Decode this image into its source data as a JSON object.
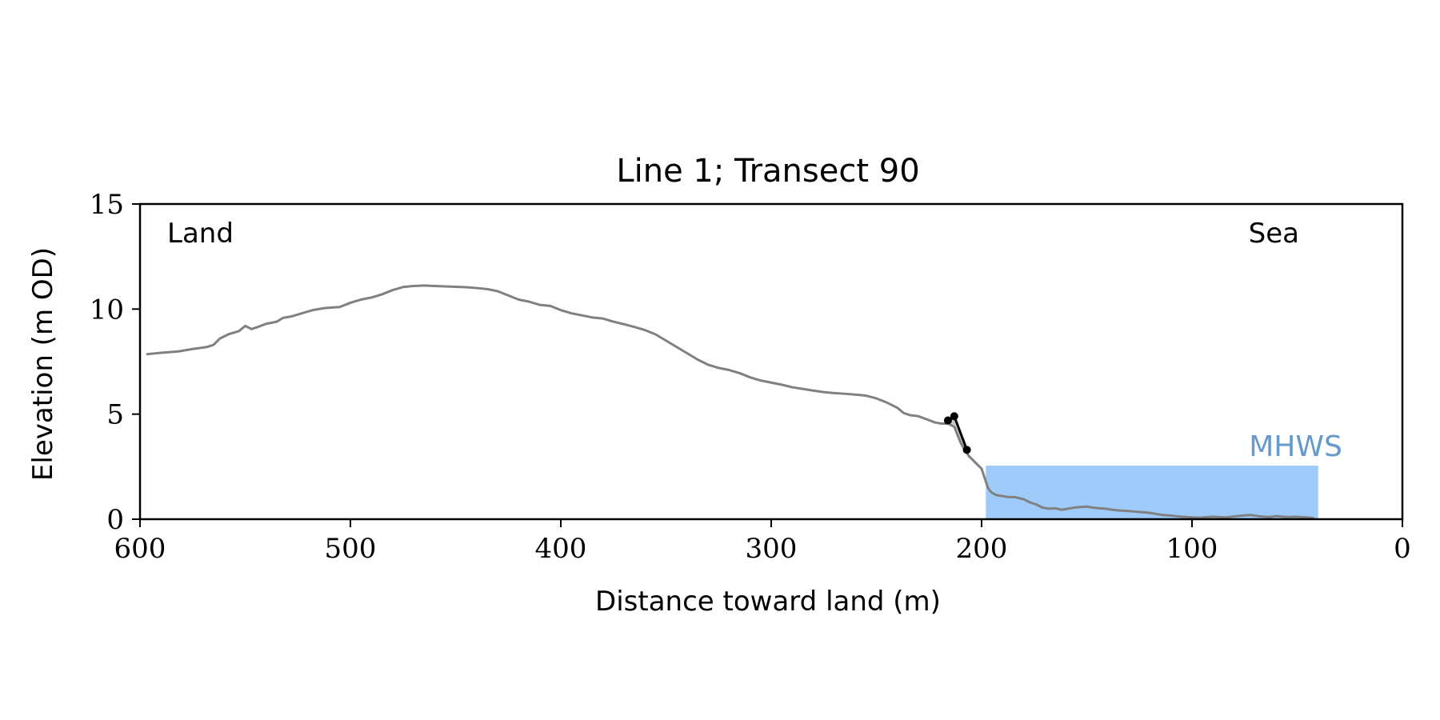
{
  "chart_data": {
    "type": "line",
    "title": "Line 1; Transect 90",
    "xlabel": "Distance toward land (m)",
    "ylabel": "Elevation (m OD)",
    "xlim": [
      600,
      0
    ],
    "ylim": [
      0,
      15
    ],
    "xticks": [
      600,
      500,
      400,
      300,
      200,
      100,
      0
    ],
    "yticks": [
      0,
      5,
      10,
      15
    ],
    "grid": false,
    "annotations": {
      "land": "Land",
      "sea": "Sea",
      "mhws": "MHWS"
    },
    "mhws": {
      "x_start": 198,
      "x_end": 40,
      "elevation": 2.55,
      "color": "#9fcbfb",
      "label_color": "#6699cc"
    },
    "colors": {
      "profile": "#808080",
      "cliff": "#000000",
      "fill": "#cccccc",
      "axis": "#000000"
    },
    "series": [
      {
        "key": "profile",
        "x": [
          597,
          590,
          582,
          575,
          568,
          565,
          562,
          558,
          553,
          550,
          547,
          544,
          540,
          535,
          532,
          528,
          523,
          518,
          512,
          505,
          500,
          495,
          490,
          485,
          480,
          475,
          470,
          465,
          460,
          455,
          450,
          445,
          440,
          435,
          430,
          425,
          420,
          415,
          410,
          405,
          400,
          395,
          390,
          385,
          380,
          375,
          370,
          365,
          360,
          355,
          350,
          345,
          340,
          335,
          330,
          325,
          320,
          315,
          310,
          305,
          300,
          295,
          290,
          285,
          280,
          275,
          270,
          265,
          260,
          255,
          250,
          245,
          240,
          237,
          234,
          230,
          226,
          222,
          219,
          216,
          213,
          210,
          208,
          206,
          204,
          202,
          200,
          199,
          198,
          197,
          196,
          195,
          193,
          190,
          187,
          184,
          180,
          177,
          174,
          171,
          168,
          165,
          162,
          159,
          156,
          153,
          150,
          147,
          144,
          141,
          138,
          135,
          132,
          129,
          126,
          123,
          120,
          117,
          114,
          111,
          108,
          105,
          102,
          99,
          96,
          93,
          90,
          87,
          84,
          81,
          78,
          75,
          72,
          69,
          66,
          63,
          60,
          57,
          54,
          51,
          48,
          45,
          42
        ],
        "y": [
          7.85,
          7.92,
          7.98,
          8.1,
          8.2,
          8.3,
          8.6,
          8.8,
          8.95,
          9.2,
          9.05,
          9.15,
          9.3,
          9.4,
          9.58,
          9.65,
          9.8,
          9.95,
          10.05,
          10.1,
          10.3,
          10.45,
          10.55,
          10.7,
          10.9,
          11.05,
          11.1,
          11.12,
          11.1,
          11.08,
          11.06,
          11.04,
          11.0,
          10.95,
          10.85,
          10.65,
          10.45,
          10.35,
          10.2,
          10.15,
          9.95,
          9.8,
          9.7,
          9.6,
          9.55,
          9.4,
          9.28,
          9.15,
          9.0,
          8.8,
          8.5,
          8.2,
          7.9,
          7.6,
          7.35,
          7.2,
          7.1,
          6.95,
          6.75,
          6.6,
          6.5,
          6.4,
          6.28,
          6.2,
          6.12,
          6.05,
          6.0,
          5.97,
          5.93,
          5.88,
          5.75,
          5.55,
          5.3,
          5.05,
          4.95,
          4.9,
          4.75,
          4.6,
          4.55,
          4.55,
          4.4,
          3.65,
          3.3,
          3.0,
          2.8,
          2.6,
          2.4,
          2.1,
          1.8,
          1.5,
          1.35,
          1.25,
          1.15,
          1.1,
          1.05,
          1.05,
          0.95,
          0.8,
          0.7,
          0.55,
          0.5,
          0.52,
          0.45,
          0.5,
          0.55,
          0.58,
          0.6,
          0.55,
          0.52,
          0.5,
          0.45,
          0.42,
          0.4,
          0.38,
          0.35,
          0.33,
          0.3,
          0.25,
          0.2,
          0.18,
          0.15,
          0.12,
          0.1,
          0.08,
          0.07,
          0.1,
          0.12,
          0.1,
          0.08,
          0.12,
          0.15,
          0.18,
          0.2,
          0.15,
          0.12,
          0.1,
          0.15,
          0.12,
          0.1,
          0.12,
          0.1,
          0.08,
          0.05
        ]
      },
      {
        "key": "cliff",
        "x": [
          216,
          213,
          207
        ],
        "y": [
          4.7,
          4.9,
          3.3
        ]
      }
    ]
  }
}
